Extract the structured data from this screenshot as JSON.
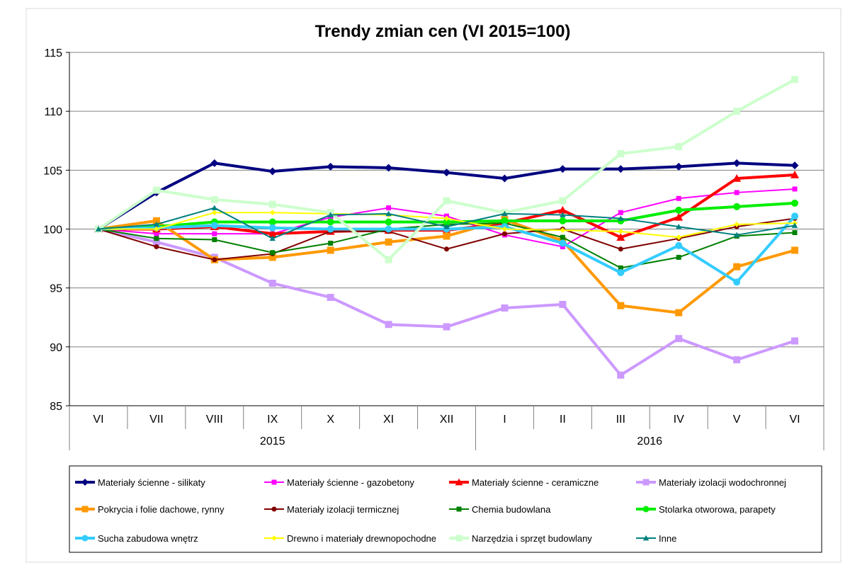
{
  "chart_data": {
    "type": "line",
    "title": "Trendy zmian cen (VI 2015=100)",
    "xlabel": "",
    "ylabel": "",
    "ylim": [
      85,
      115
    ],
    "yticks": [
      "85",
      "90",
      "95",
      "100",
      "105",
      "110",
      "115"
    ],
    "grid": true,
    "legend_position": "bottom",
    "categories": [
      "VI",
      "VII",
      "VIII",
      "IX",
      "X",
      "XI",
      "XII",
      "I",
      "II",
      "III",
      "IV",
      "V",
      "VI"
    ],
    "year_groups": [
      {
        "label": "2015",
        "start": 0,
        "end": 6
      },
      {
        "label": "2016",
        "start": 7,
        "end": 12
      }
    ],
    "series": [
      {
        "name": "Materiały ścienne - silikaty",
        "color": "#000080",
        "marker": "diamond",
        "width": 4,
        "values": [
          100,
          103.1,
          105.6,
          104.9,
          105.3,
          105.2,
          104.8,
          104.3,
          105.1,
          105.1,
          105.3,
          105.6,
          105.4
        ]
      },
      {
        "name": "Materiały ścienne - gazobetony",
        "color": "#ff00ff",
        "marker": "square",
        "width": 2,
        "values": [
          100,
          99.6,
          99.6,
          99.6,
          101.0,
          101.8,
          101.1,
          99.5,
          98.5,
          101.4,
          102.6,
          103.1,
          103.4
        ]
      },
      {
        "name": "Materiały ścienne - ceramiczne",
        "color": "#ff0000",
        "marker": "triangle",
        "width": 4,
        "values": [
          100,
          100.0,
          100.2,
          99.6,
          99.8,
          99.9,
          99.9,
          100.5,
          101.6,
          99.3,
          101.0,
          104.3,
          104.6
        ]
      },
      {
        "name": "Materiały izolacji wodochronnej",
        "color": "#cc99ff",
        "marker": "square",
        "width": 4,
        "values": [
          100,
          98.9,
          97.6,
          95.4,
          94.2,
          91.9,
          91.7,
          93.3,
          93.6,
          87.6,
          90.7,
          88.9,
          90.5
        ]
      },
      {
        "name": "Pokrycia i folie dachowe, rynny",
        "color": "#ff9900",
        "marker": "square",
        "width": 4,
        "values": [
          100,
          100.7,
          97.4,
          97.6,
          98.2,
          98.9,
          99.4,
          100.8,
          99.0,
          93.5,
          92.9,
          96.8,
          98.2
        ]
      },
      {
        "name": "Materiały izolacji termicznej",
        "color": "#800000",
        "marker": "circle",
        "width": 2,
        "values": [
          100,
          98.5,
          97.4,
          97.9,
          99.8,
          99.8,
          98.3,
          99.6,
          100.0,
          98.3,
          99.2,
          100.2,
          100.9
        ]
      },
      {
        "name": "Chemia budowlana",
        "color": "#008000",
        "marker": "square",
        "width": 2,
        "values": [
          100,
          99.2,
          99.1,
          98.0,
          98.8,
          100.0,
          100.4,
          100.5,
          99.3,
          96.7,
          97.6,
          99.4,
          99.7
        ]
      },
      {
        "name": "Stolarka otworowa, parapety",
        "color": "#00ee00",
        "marker": "circle",
        "width": 4,
        "values": [
          100,
          100.2,
          100.6,
          100.6,
          100.6,
          100.6,
          100.6,
          100.7,
          100.7,
          100.7,
          101.6,
          101.9,
          102.2
        ]
      },
      {
        "name": "Sucha zabudowa wnętrz",
        "color": "#33ccff",
        "marker": "circle",
        "width": 4,
        "values": [
          100,
          100.1,
          100.3,
          100.1,
          100.0,
          100.0,
          100.0,
          100.2,
          98.8,
          96.3,
          98.6,
          95.5,
          101.1
        ]
      },
      {
        "name": "Drewno i materiały drewnopochodne",
        "color": "#ffff00",
        "marker": "diamond",
        "width": 2,
        "values": [
          100,
          100.0,
          101.4,
          101.4,
          101.3,
          101.2,
          100.9,
          100.0,
          99.9,
          99.8,
          99.3,
          100.4,
          100.5
        ]
      },
      {
        "name": "Narzędzia i sprzęt budowlany",
        "color": "#ccffcc",
        "marker": "square",
        "width": 4,
        "values": [
          100,
          103.3,
          102.5,
          102.1,
          101.4,
          97.4,
          102.4,
          101.4,
          102.4,
          106.4,
          107.0,
          110.0,
          112.7
        ]
      },
      {
        "name": "Inne",
        "color": "#008080",
        "marker": "triangle",
        "width": 2,
        "values": [
          100,
          100.4,
          101.8,
          99.2,
          101.2,
          101.3,
          100.2,
          101.3,
          101.2,
          100.9,
          100.2,
          99.5,
          100.3
        ]
      }
    ]
  }
}
